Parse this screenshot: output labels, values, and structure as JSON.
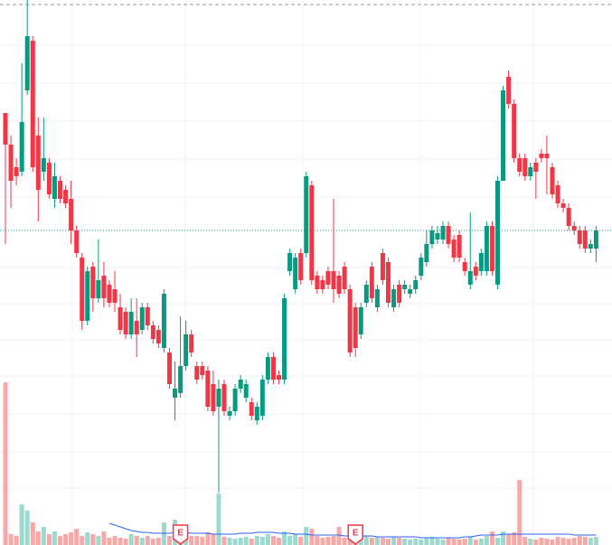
{
  "chart_data": {
    "type": "candlestick",
    "ylim": [
      0,
      600
    ],
    "volume_ylim": [
      0,
      200
    ],
    "up_color": "#089981",
    "down_color": "#f23645",
    "volume_up_color": "#9fd8cf",
    "volume_down_color": "#f7a9a7",
    "volume_ma_color": "#2962ff",
    "last_price": 345,
    "high_line": 595,
    "open": [
      475,
      440,
      415,
      410,
      500,
      555,
      450,
      410,
      420,
      380,
      400,
      390,
      380,
      345,
      315,
      245,
      305,
      270,
      295,
      285,
      280,
      260,
      255,
      230,
      245,
      235,
      260,
      240,
      235,
      215,
      210,
      160,
      165,
      195,
      230,
      195,
      195,
      190,
      175,
      150,
      175,
      140,
      145,
      170,
      160,
      155,
      135,
      140,
      180,
      205,
      185,
      180,
      300,
      280,
      320,
      320,
      395,
      295,
      290,
      300,
      300,
      295,
      305,
      280,
      260,
      230,
      265,
      305,
      260,
      320,
      310,
      260,
      285,
      280,
      275,
      280,
      295,
      310,
      330,
      335,
      335,
      350,
      335,
      340,
      310,
      285,
      305,
      300,
      300,
      350,
      285,
      400,
      515,
      485,
      425,
      425,
      405,
      420,
      430,
      430,
      415,
      395,
      375,
      370,
      350,
      345,
      345,
      325,
      325
    ],
    "high": [
      475,
      450,
      425,
      530,
      600,
      560,
      470,
      470,
      425,
      420,
      405,
      395,
      400,
      350,
      320,
      305,
      310,
      335,
      310,
      290,
      300,
      275,
      260,
      270,
      270,
      265,
      265,
      245,
      240,
      280,
      215,
      200,
      250,
      245,
      235,
      200,
      200,
      195,
      190,
      180,
      180,
      150,
      175,
      185,
      180,
      160,
      155,
      185,
      210,
      210,
      190,
      275,
      325,
      320,
      325,
      410,
      400,
      300,
      295,
      305,
      380,
      300,
      310,
      285,
      265,
      265,
      290,
      310,
      285,
      325,
      315,
      285,
      290,
      290,
      285,
      295,
      320,
      345,
      350,
      350,
      355,
      355,
      340,
      345,
      315,
      365,
      310,
      325,
      355,
      355,
      405,
      505,
      522,
      490,
      430,
      430,
      420,
      425,
      435,
      450,
      420,
      400,
      380,
      375,
      355,
      350,
      350,
      335,
      350
    ],
    "low": [
      330,
      370,
      395,
      405,
      495,
      410,
      355,
      400,
      380,
      370,
      375,
      370,
      330,
      315,
      235,
      240,
      255,
      265,
      260,
      260,
      255,
      230,
      225,
      225,
      205,
      230,
      235,
      220,
      215,
      210,
      170,
      135,
      160,
      190,
      205,
      175,
      180,
      145,
      140,
      55,
      140,
      135,
      140,
      165,
      155,
      135,
      130,
      135,
      175,
      175,
      175,
      175,
      295,
      275,
      285,
      315,
      285,
      275,
      275,
      280,
      265,
      270,
      275,
      205,
      205,
      225,
      260,
      265,
      255,
      285,
      260,
      255,
      260,
      275,
      270,
      275,
      290,
      305,
      325,
      330,
      330,
      325,
      310,
      310,
      295,
      280,
      290,
      295,
      295,
      295,
      280,
      400,
      480,
      420,
      405,
      400,
      400,
      380,
      420,
      385,
      380,
      370,
      365,
      345,
      340,
      325,
      320,
      320,
      310
    ],
    "close": [
      440,
      400,
      405,
      465,
      560,
      415,
      390,
      425,
      385,
      405,
      380,
      375,
      345,
      320,
      245,
      300,
      270,
      290,
      270,
      265,
      265,
      235,
      230,
      255,
      230,
      260,
      240,
      225,
      220,
      275,
      175,
      170,
      195,
      230,
      210,
      180,
      185,
      150,
      145,
      170,
      145,
      145,
      170,
      180,
      175,
      140,
      150,
      180,
      205,
      180,
      180,
      270,
      320,
      315,
      290,
      405,
      290,
      280,
      280,
      285,
      280,
      275,
      280,
      210,
      215,
      260,
      285,
      270,
      280,
      290,
      265,
      280,
      265,
      285,
      280,
      290,
      315,
      330,
      345,
      342,
      350,
      330,
      315,
      315,
      300,
      300,
      295,
      320,
      350,
      300,
      400,
      500,
      485,
      425,
      410,
      405,
      415,
      410,
      425,
      425,
      385,
      375,
      370,
      350,
      345,
      330,
      325,
      330,
      345
    ],
    "volume": [
      180,
      12,
      10,
      45,
      38,
      25,
      15,
      20,
      12,
      15,
      10,
      12,
      14,
      18,
      10,
      14,
      12,
      10,
      15,
      8,
      10,
      8,
      7,
      12,
      10,
      8,
      10,
      7,
      8,
      25,
      10,
      28,
      18,
      12,
      10,
      10,
      9,
      14,
      12,
      57,
      9,
      8,
      7,
      8,
      9,
      7,
      10,
      9,
      12,
      10,
      8,
      15,
      10,
      12,
      9,
      20,
      18,
      10,
      8,
      9,
      10,
      20,
      8,
      9,
      18,
      14,
      10,
      8,
      9,
      8,
      7,
      9,
      8,
      7,
      6,
      7,
      6,
      8,
      9,
      7,
      6,
      8,
      7,
      6,
      7,
      9,
      6,
      7,
      10,
      15,
      8,
      15,
      12,
      14,
      72,
      9,
      7,
      6,
      8,
      7,
      6,
      9,
      8,
      7,
      8,
      10,
      9,
      8,
      9
    ],
    "volume_ma": [
      null,
      null,
      null,
      null,
      null,
      null,
      null,
      null,
      null,
      null,
      null,
      null,
      null,
      null,
      null,
      null,
      null,
      null,
      null,
      24,
      22,
      20,
      18,
      16,
      15,
      14,
      14,
      13,
      13,
      13,
      13,
      14,
      14,
      14,
      13,
      13,
      13,
      13,
      12,
      12,
      12,
      12,
      12,
      13,
      13,
      13,
      14,
      14,
      14,
      14,
      13,
      13,
      13,
      12,
      12,
      12,
      11,
      11,
      11,
      11,
      11,
      11,
      10,
      10,
      10,
      10,
      10,
      10,
      9,
      9,
      9,
      9,
      9,
      9,
      9,
      9,
      8,
      8,
      8,
      8,
      8,
      8,
      8,
      8,
      9,
      9,
      10,
      11,
      11,
      11,
      11,
      12,
      12,
      12,
      12,
      12,
      12,
      12,
      12,
      12,
      12,
      12,
      12,
      12,
      11,
      11,
      11,
      11,
      11
    ],
    "events": [
      {
        "index": 32,
        "label": "E"
      },
      {
        "index": 64,
        "label": "E"
      }
    ]
  }
}
